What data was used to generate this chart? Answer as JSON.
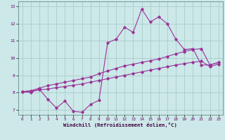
{
  "xlabel": "Windchill (Refroidissement éolien,°C)",
  "xlim": [
    -0.5,
    23.5
  ],
  "ylim": [
    6.7,
    13.3
  ],
  "yticks": [
    7,
    8,
    9,
    10,
    11,
    12,
    13
  ],
  "xticks": [
    0,
    1,
    2,
    3,
    4,
    5,
    6,
    7,
    8,
    9,
    10,
    11,
    12,
    13,
    14,
    15,
    16,
    17,
    18,
    19,
    20,
    21,
    22,
    23
  ],
  "background_color": "#cce8e8",
  "grid_color": "#aacccc",
  "line_color": "#993399",
  "line1_y": [
    8.05,
    8.0,
    8.2,
    7.6,
    7.1,
    7.5,
    6.9,
    6.85,
    7.3,
    7.55,
    10.9,
    11.1,
    11.8,
    11.5,
    12.85,
    12.1,
    12.4,
    12.0,
    11.1,
    10.5,
    10.55,
    9.6,
    9.6,
    9.75
  ],
  "line2_y": [
    8.05,
    8.1,
    8.25,
    8.4,
    8.5,
    8.6,
    8.7,
    8.8,
    8.9,
    9.1,
    9.25,
    9.4,
    9.55,
    9.65,
    9.75,
    9.85,
    9.95,
    10.1,
    10.25,
    10.38,
    10.5,
    10.55,
    9.6,
    9.75
  ],
  "line3_y": [
    8.05,
    8.08,
    8.15,
    8.2,
    8.28,
    8.35,
    8.42,
    8.5,
    8.6,
    8.7,
    8.8,
    8.9,
    9.0,
    9.1,
    9.2,
    9.3,
    9.4,
    9.5,
    9.6,
    9.68,
    9.76,
    9.82,
    9.5,
    9.65
  ],
  "marker_size": 1.8,
  "line_width": 0.8
}
